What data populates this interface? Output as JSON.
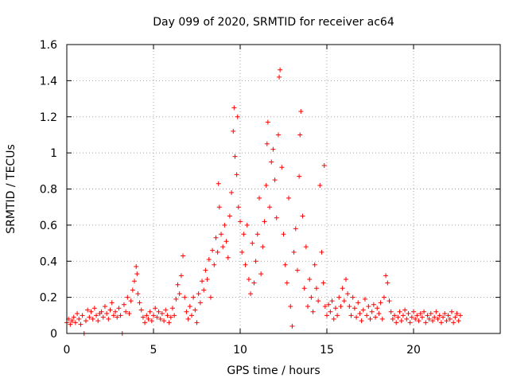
{
  "chart_data": {
    "type": "scatter",
    "title": "Day 099 of 2020, SRMTID for receiver ac64",
    "xlabel": "GPS time / hours",
    "ylabel": "SRMTID / TECUs",
    "xlim": [
      0,
      25
    ],
    "ylim": [
      0,
      1.6
    ],
    "xticks": [
      0,
      5,
      10,
      15,
      20
    ],
    "yticks": [
      0,
      0.2,
      0.4,
      0.6,
      0.8,
      1,
      1.2,
      1.4,
      1.6
    ],
    "xtick_labels": [
      "0",
      "5",
      "10",
      "15",
      "20"
    ],
    "ytick_labels": [
      "0",
      "0.2",
      "0.4",
      "0.6",
      "0.8",
      "1",
      "1.2",
      "1.4",
      "1.6"
    ],
    "grid": true,
    "marker": "+",
    "color": "#ff0000",
    "series": [
      {
        "name": "SRMTID",
        "points": [
          [
            0.0,
            0.06
          ],
          [
            0.1,
            0.08
          ],
          [
            0.2,
            0.05
          ],
          [
            0.3,
            0.07
          ],
          [
            0.4,
            0.09
          ],
          [
            0.5,
            0.06
          ],
          [
            0.6,
            0.11
          ],
          [
            0.7,
            0.08
          ],
          [
            0.8,
            0.05
          ],
          [
            0.9,
            0.1
          ],
          [
            1.0,
            0.0
          ],
          [
            1.1,
            0.07
          ],
          [
            1.2,
            0.13
          ],
          [
            1.3,
            0.09
          ],
          [
            1.4,
            0.12
          ],
          [
            1.5,
            0.08
          ],
          [
            1.6,
            0.14
          ],
          [
            1.7,
            0.1
          ],
          [
            1.8,
            0.07
          ],
          [
            1.9,
            0.11
          ],
          [
            2.0,
            0.12
          ],
          [
            2.1,
            0.09
          ],
          [
            2.2,
            0.15
          ],
          [
            2.3,
            0.11
          ],
          [
            2.4,
            0.08
          ],
          [
            2.5,
            0.13
          ],
          [
            2.6,
            0.17
          ],
          [
            2.7,
            0.1
          ],
          [
            2.8,
            0.12
          ],
          [
            2.9,
            0.09
          ],
          [
            3.0,
            0.14
          ],
          [
            3.1,
            0.1
          ],
          [
            3.2,
            0.0
          ],
          [
            3.3,
            0.16
          ],
          [
            3.4,
            0.12
          ],
          [
            3.5,
            0.2
          ],
          [
            3.6,
            0.11
          ],
          [
            3.7,
            0.18
          ],
          [
            3.8,
            0.24
          ],
          [
            3.9,
            0.29
          ],
          [
            4.0,
            0.37
          ],
          [
            4.05,
            0.33
          ],
          [
            4.1,
            0.22
          ],
          [
            4.2,
            0.17
          ],
          [
            4.3,
            0.13
          ],
          [
            4.4,
            0.09
          ],
          [
            4.5,
            0.06
          ],
          [
            4.6,
            0.1
          ],
          [
            4.7,
            0.08
          ],
          [
            4.8,
            0.12
          ],
          [
            4.9,
            0.07
          ],
          [
            5.0,
            0.1
          ],
          [
            5.1,
            0.14
          ],
          [
            5.2,
            0.09
          ],
          [
            5.3,
            0.12
          ],
          [
            5.4,
            0.08
          ],
          [
            5.5,
            0.11
          ],
          [
            5.6,
            0.07
          ],
          [
            5.7,
            0.13
          ],
          [
            5.8,
            0.1
          ],
          [
            5.9,
            0.06
          ],
          [
            6.0,
            0.09
          ],
          [
            6.1,
            0.14
          ],
          [
            6.2,
            0.1
          ],
          [
            6.3,
            0.19
          ],
          [
            6.4,
            0.27
          ],
          [
            6.5,
            0.22
          ],
          [
            6.6,
            0.32
          ],
          [
            6.7,
            0.43
          ],
          [
            6.8,
            0.2
          ],
          [
            6.9,
            0.12
          ],
          [
            7.0,
            0.08
          ],
          [
            7.1,
            0.15
          ],
          [
            7.2,
            0.1
          ],
          [
            7.3,
            0.2
          ],
          [
            7.4,
            0.13
          ],
          [
            7.5,
            0.06
          ],
          [
            7.6,
            0.22
          ],
          [
            7.7,
            0.17
          ],
          [
            7.8,
            0.29
          ],
          [
            7.9,
            0.24
          ],
          [
            8.0,
            0.35
          ],
          [
            8.1,
            0.3
          ],
          [
            8.2,
            0.41
          ],
          [
            8.3,
            0.2
          ],
          [
            8.4,
            0.46
          ],
          [
            8.5,
            0.38
          ],
          [
            8.6,
            0.53
          ],
          [
            8.7,
            0.45
          ],
          [
            8.75,
            0.83
          ],
          [
            8.8,
            0.7
          ],
          [
            8.9,
            0.55
          ],
          [
            9.0,
            0.48
          ],
          [
            9.1,
            0.6
          ],
          [
            9.2,
            0.51
          ],
          [
            9.3,
            0.42
          ],
          [
            9.4,
            0.65
          ],
          [
            9.5,
            0.78
          ],
          [
            9.6,
            1.12
          ],
          [
            9.65,
            1.25
          ],
          [
            9.7,
            0.98
          ],
          [
            9.8,
            0.88
          ],
          [
            9.85,
            1.2
          ],
          [
            9.9,
            0.7
          ],
          [
            10.0,
            0.62
          ],
          [
            10.1,
            0.45
          ],
          [
            10.2,
            0.55
          ],
          [
            10.3,
            0.38
          ],
          [
            10.4,
            0.6
          ],
          [
            10.5,
            0.3
          ],
          [
            10.6,
            0.22
          ],
          [
            10.7,
            0.5
          ],
          [
            10.8,
            0.28
          ],
          [
            10.9,
            0.4
          ],
          [
            11.0,
            0.55
          ],
          [
            11.1,
            0.75
          ],
          [
            11.2,
            0.33
          ],
          [
            11.3,
            0.48
          ],
          [
            11.4,
            0.62
          ],
          [
            11.5,
            0.82
          ],
          [
            11.55,
            1.05
          ],
          [
            11.6,
            1.17
          ],
          [
            11.7,
            0.7
          ],
          [
            11.8,
            0.95
          ],
          [
            11.9,
            1.02
          ],
          [
            12.0,
            0.85
          ],
          [
            12.1,
            0.64
          ],
          [
            12.2,
            1.1
          ],
          [
            12.25,
            1.42
          ],
          [
            12.3,
            1.46
          ],
          [
            12.4,
            0.92
          ],
          [
            12.5,
            0.55
          ],
          [
            12.6,
            0.38
          ],
          [
            12.7,
            0.28
          ],
          [
            12.8,
            0.75
          ],
          [
            12.9,
            0.15
          ],
          [
            13.0,
            0.04
          ],
          [
            13.1,
            0.45
          ],
          [
            13.2,
            0.58
          ],
          [
            13.3,
            0.35
          ],
          [
            13.4,
            0.87
          ],
          [
            13.45,
            1.1
          ],
          [
            13.5,
            1.23
          ],
          [
            13.6,
            0.65
          ],
          [
            13.7,
            0.25
          ],
          [
            13.8,
            0.48
          ],
          [
            13.9,
            0.15
          ],
          [
            14.0,
            0.3
          ],
          [
            14.1,
            0.2
          ],
          [
            14.2,
            0.12
          ],
          [
            14.3,
            0.38
          ],
          [
            14.4,
            0.25
          ],
          [
            14.5,
            0.18
          ],
          [
            14.6,
            0.82
          ],
          [
            14.7,
            0.45
          ],
          [
            14.8,
            0.28
          ],
          [
            14.85,
            0.93
          ],
          [
            14.9,
            0.15
          ],
          [
            15.0,
            0.1
          ],
          [
            15.1,
            0.16
          ],
          [
            15.2,
            0.12
          ],
          [
            15.3,
            0.18
          ],
          [
            15.4,
            0.08
          ],
          [
            15.5,
            0.14
          ],
          [
            15.6,
            0.1
          ],
          [
            15.7,
            0.2
          ],
          [
            15.8,
            0.15
          ],
          [
            15.9,
            0.25
          ],
          [
            16.0,
            0.18
          ],
          [
            16.1,
            0.3
          ],
          [
            16.2,
            0.22
          ],
          [
            16.3,
            0.15
          ],
          [
            16.4,
            0.1
          ],
          [
            16.5,
            0.2
          ],
          [
            16.6,
            0.14
          ],
          [
            16.7,
            0.09
          ],
          [
            16.8,
            0.17
          ],
          [
            16.9,
            0.11
          ],
          [
            17.0,
            0.07
          ],
          [
            17.1,
            0.13
          ],
          [
            17.2,
            0.19
          ],
          [
            17.3,
            0.1
          ],
          [
            17.4,
            0.15
          ],
          [
            17.5,
            0.08
          ],
          [
            17.6,
            0.12
          ],
          [
            17.7,
            0.16
          ],
          [
            17.8,
            0.09
          ],
          [
            17.9,
            0.14
          ],
          [
            18.0,
            0.11
          ],
          [
            18.1,
            0.17
          ],
          [
            18.2,
            0.08
          ],
          [
            18.3,
            0.2
          ],
          [
            18.4,
            0.32
          ],
          [
            18.5,
            0.28
          ],
          [
            18.6,
            0.18
          ],
          [
            18.7,
            0.12
          ],
          [
            18.8,
            0.08
          ],
          [
            18.9,
            0.1
          ],
          [
            19.0,
            0.06
          ],
          [
            19.1,
            0.09
          ],
          [
            19.2,
            0.12
          ],
          [
            19.3,
            0.07
          ],
          [
            19.4,
            0.1
          ],
          [
            19.5,
            0.13
          ],
          [
            19.6,
            0.08
          ],
          [
            19.7,
            0.11
          ],
          [
            19.8,
            0.06
          ],
          [
            19.9,
            0.09
          ],
          [
            20.0,
            0.12
          ],
          [
            20.1,
            0.08
          ],
          [
            20.2,
            0.1
          ],
          [
            20.3,
            0.07
          ],
          [
            20.4,
            0.11
          ],
          [
            20.5,
            0.09
          ],
          [
            20.6,
            0.12
          ],
          [
            20.7,
            0.06
          ],
          [
            20.8,
            0.1
          ],
          [
            20.9,
            0.08
          ],
          [
            21.0,
            0.11
          ],
          [
            21.1,
            0.07
          ],
          [
            21.2,
            0.09
          ],
          [
            21.3,
            0.12
          ],
          [
            21.4,
            0.08
          ],
          [
            21.5,
            0.1
          ],
          [
            21.6,
            0.06
          ],
          [
            21.7,
            0.09
          ],
          [
            21.8,
            0.11
          ],
          [
            21.9,
            0.07
          ],
          [
            22.0,
            0.1
          ],
          [
            22.1,
            0.08
          ],
          [
            22.2,
            0.12
          ],
          [
            22.3,
            0.06
          ],
          [
            22.4,
            0.09
          ],
          [
            22.5,
            0.11
          ],
          [
            22.6,
            0.07
          ],
          [
            22.7,
            0.1
          ]
        ]
      }
    ]
  }
}
